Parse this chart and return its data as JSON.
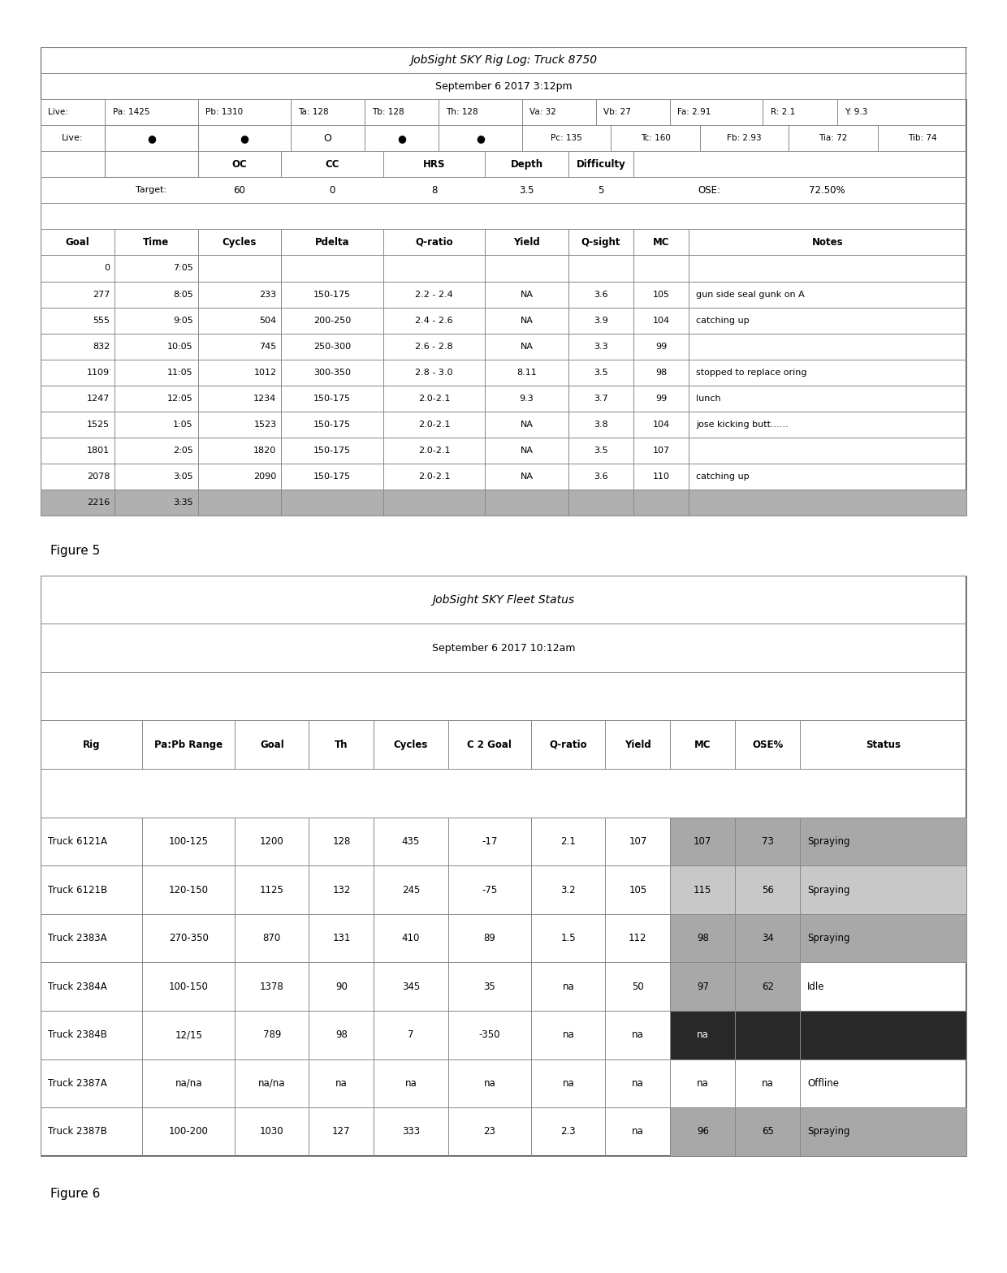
{
  "fig1_title": "JobSight SKY Rig Log: Truck 8750",
  "fig1_subtitle": "September 6 2017 3:12pm",
  "fig1_live_row1": [
    "Live:",
    "Pa: 1425",
    "Pb: 1310",
    "Ta: 128",
    "Tb: 128",
    "Th: 128",
    "Va: 32",
    "Vb: 27",
    "Fa: 2.91",
    "R: 2.1",
    "Y: 9.3"
  ],
  "fig1_live_row2_left": [
    "Live:",
    "●",
    "●",
    "O",
    "●",
    "●"
  ],
  "fig1_live_row2_right": [
    "Pc: 135",
    "Tc: 160",
    "Fb: 2.93",
    "Tia: 72",
    "Tib: 74"
  ],
  "fig1_col_headers": [
    "Goal",
    "Time",
    "Cycles",
    "Pdelta",
    "Q-ratio",
    "Yield",
    "Q-sight",
    "MC",
    "Notes"
  ],
  "fig1_data": [
    [
      "0",
      "7:05",
      "",
      "",
      "",
      "",
      "",
      "",
      ""
    ],
    [
      "277",
      "8:05",
      "233",
      "150-175",
      "2.2 - 2.4",
      "NA",
      "3.6",
      "105",
      "gun side seal gunk on A"
    ],
    [
      "555",
      "9:05",
      "504",
      "200-250",
      "2.4 - 2.6",
      "NA",
      "3.9",
      "104",
      "catching up"
    ],
    [
      "832",
      "10:05",
      "745",
      "250-300",
      "2.6 - 2.8",
      "NA",
      "3.3",
      "99",
      ""
    ],
    [
      "1109",
      "11:05",
      "1012",
      "300-350",
      "2.8 - 3.0",
      "8.11",
      "3.5",
      "98",
      "stopped to replace oring"
    ],
    [
      "1247",
      "12:05",
      "1234",
      "150-175",
      "2.0-2.1",
      "9.3",
      "3.7",
      "99",
      "lunch"
    ],
    [
      "1525",
      "1:05",
      "1523",
      "150-175",
      "2.0-2.1",
      "NA",
      "3.8",
      "104",
      "jose kicking butt......"
    ],
    [
      "1801",
      "2:05",
      "1820",
      "150-175",
      "2.0-2.1",
      "NA",
      "3.5",
      "107",
      ""
    ],
    [
      "2078",
      "3:05",
      "2090",
      "150-175",
      "2.0-2.1",
      "NA",
      "3.6",
      "110",
      "catching up"
    ],
    [
      "2216",
      "3:35",
      "",
      "",
      "",
      "",
      "",
      "",
      ""
    ]
  ],
  "fig1_last_row_bg": "#b0b0b0",
  "fig2_title": "JobSight SKY Fleet Status",
  "fig2_subtitle": "September 6 2017 10:12am",
  "fig2_col_headers": [
    "Rig",
    "Pa:Pb Range",
    "Goal",
    "Th",
    "Cycles",
    "C 2 Goal",
    "Q-ratio",
    "Yield",
    "MC",
    "OSE%",
    "Status"
  ],
  "fig2_data": [
    [
      "Truck 6121A",
      "100-125",
      "1200",
      "128",
      "435",
      "-17",
      "2.1",
      "107",
      "107",
      "73",
      "Spraying"
    ],
    [
      "Truck 6121B",
      "120-150",
      "1125",
      "132",
      "245",
      "-75",
      "3.2",
      "105",
      "115",
      "56",
      "Spraying"
    ],
    [
      "Truck 2383A",
      "270-350",
      "870",
      "131",
      "410",
      "89",
      "1.5",
      "112",
      "98",
      "34",
      "Spraying"
    ],
    [
      "Truck 2384A",
      "100-150",
      "1378",
      "90",
      "345",
      "35",
      "na",
      "50",
      "97",
      "62",
      "Idle"
    ],
    [
      "Truck 2384B",
      "12/15",
      "789",
      "98",
      "7",
      "-350",
      "na",
      "na",
      "na",
      "",
      ""
    ],
    [
      "Truck 2387A",
      "na/na",
      "na/na",
      "na",
      "na",
      "na",
      "na",
      "na",
      "na",
      "na",
      "Offline"
    ],
    [
      "Truck 2387B",
      "100-200",
      "1030",
      "127",
      "333",
      "23",
      "2.3",
      "na",
      "96",
      "65",
      "Spraying"
    ]
  ],
  "fig2_cell_colors": {
    "Truck 6121A": {
      "mc": "#a8a8a8",
      "ose": "#a8a8a8",
      "status": "#a8a8a8"
    },
    "Truck 6121B": {
      "mc": "#c8c8c8",
      "ose": "#c8c8c8",
      "status": "#c8c8c8"
    },
    "Truck 2383A": {
      "mc": "#a8a8a8",
      "ose": "#a8a8a8",
      "status": "#a8a8a8"
    },
    "Truck 2384A": {
      "mc": "#a8a8a8",
      "ose": "#a8a8a8",
      "status": "#ffffff"
    },
    "Truck 2384B": {
      "mc": "#282828",
      "ose": "#282828",
      "status": "#282828"
    },
    "Truck 2387A": {
      "mc": "#ffffff",
      "ose": "#ffffff",
      "status": "#ffffff"
    },
    "Truck 2387B": {
      "mc": "#a8a8a8",
      "ose": "#a8a8a8",
      "status": "#a8a8a8"
    }
  },
  "background_color": "#ffffff",
  "fig1_lw1": [
    0.07,
    0.1,
    0.1,
    0.08,
    0.08,
    0.09,
    0.08,
    0.08,
    0.1,
    0.08,
    0.14
  ],
  "fig1_col_bounds": [
    0.0,
    0.08,
    0.17,
    0.26,
    0.37,
    0.48,
    0.57,
    0.64,
    0.7,
    1.0
  ],
  "fig2_col_bounds": [
    0.0,
    0.11,
    0.21,
    0.29,
    0.36,
    0.44,
    0.53,
    0.61,
    0.68,
    0.75,
    0.82,
    1.0
  ]
}
